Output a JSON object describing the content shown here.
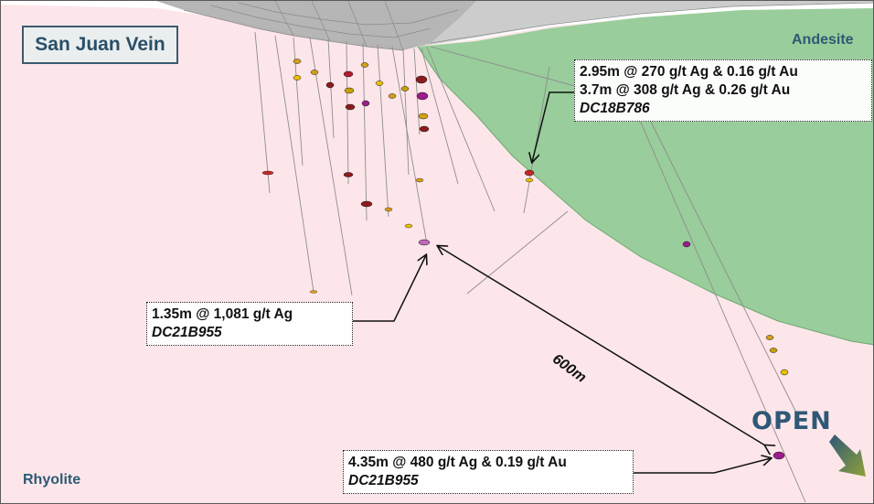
{
  "title": "San Juan Vein",
  "units": {
    "andesite": "Andesite",
    "rhyolite": "Rhyolite"
  },
  "callouts": {
    "dc18b786": {
      "line1": "2.95m @ 270 g/t Ag & 0.16 g/t Au",
      "line2": "3.7m @ 308 g/t Ag & 0.26 g/t Au",
      "hole": "DC18B786"
    },
    "dc21b955_upper": {
      "line1": "1.35m @ 1,081 g/t Ag",
      "hole": "DC21B955"
    },
    "dc21b955_lower": {
      "line1": "4.35m @ 480 g/t Ag & 0.19 g/t Au",
      "hole": "DC21B955"
    }
  },
  "distance": "600m",
  "open_label": "OPEN",
  "colors": {
    "rhyolite": "#fde6ea",
    "andesite": "#99cd9b",
    "topography": "#a9a9a9",
    "title_text": "#2a4f68",
    "open_text": "#2e5876",
    "open_arrow": "#6f8a3a",
    "high_grade_intercept": "#9b1d8c"
  },
  "icons": {
    "open_arrow": "gradient-arrow-down-right"
  }
}
